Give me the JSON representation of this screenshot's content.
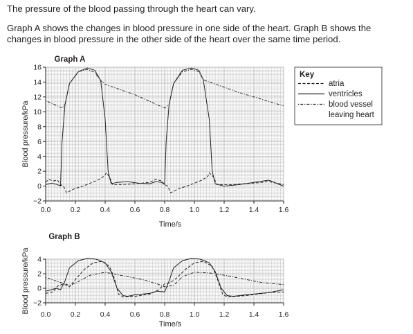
{
  "intro_text": "The pressure of the blood passing through the heart can vary.",
  "description_text": "Graph A shows the changes in blood pressure in one side of the heart. Graph B shows the changes in blood pressure in the other side of the heart over the same time period.",
  "key": {
    "title": "Key",
    "entries": [
      {
        "label": "atria",
        "style": "dashed"
      },
      {
        "label": "ventricles",
        "style": "solid"
      },
      {
        "label": "blood vessel",
        "style": "dash-dot",
        "label_line2": "leaving heart"
      }
    ]
  },
  "colors": {
    "line": "#231f20",
    "grid": "#b7b7b7",
    "text": "#231f20"
  },
  "chart_data": [
    {
      "type": "line",
      "title": "Graph A",
      "xlabel": "Time/s",
      "ylabel": "Blood pressure/kPa",
      "xlim": [
        0.0,
        1.6
      ],
      "ylim": [
        -2,
        16
      ],
      "x_ticks": [
        "0.0",
        "0.2",
        "0.4",
        "0.6",
        "0.8",
        "1.0",
        "1.2",
        "1.4",
        "1.6"
      ],
      "y_ticks": [
        "−2",
        "0",
        "2",
        "4",
        "6",
        "8",
        "10",
        "12",
        "14",
        "16"
      ],
      "grid": true,
      "legend": "Key, right of Graph A",
      "series": [
        {
          "name": "ventricles",
          "style": "solid",
          "points": [
            [
              0.0,
              0.2
            ],
            [
              0.04,
              0.4
            ],
            [
              0.08,
              0.2
            ],
            [
              0.1,
              0.0
            ],
            [
              0.11,
              6.0
            ],
            [
              0.13,
              11.0
            ],
            [
              0.16,
              13.8
            ],
            [
              0.22,
              15.4
            ],
            [
              0.28,
              15.9
            ],
            [
              0.33,
              15.6
            ],
            [
              0.37,
              14.2
            ],
            [
              0.4,
              9.0
            ],
            [
              0.42,
              2.0
            ],
            [
              0.44,
              0.3
            ],
            [
              0.48,
              0.5
            ],
            [
              0.55,
              0.6
            ],
            [
              0.62,
              0.4
            ],
            [
              0.7,
              0.3
            ],
            [
              0.74,
              0.6
            ],
            [
              0.78,
              0.5
            ],
            [
              0.8,
              0.2
            ],
            [
              0.81,
              6.0
            ],
            [
              0.83,
              11.0
            ],
            [
              0.86,
              13.8
            ],
            [
              0.92,
              15.6
            ],
            [
              0.98,
              15.9
            ],
            [
              1.03,
              15.6
            ],
            [
              1.06,
              14.3
            ],
            [
              1.1,
              9.0
            ],
            [
              1.12,
              2.0
            ],
            [
              1.14,
              0.3
            ],
            [
              1.2,
              0.0
            ],
            [
              1.3,
              0.2
            ],
            [
              1.4,
              0.5
            ],
            [
              1.5,
              0.8
            ],
            [
              1.6,
              0.0
            ]
          ]
        },
        {
          "name": "atria",
          "style": "dashed",
          "points": [
            [
              0.0,
              0.5
            ],
            [
              0.02,
              0.9
            ],
            [
              0.05,
              0.7
            ],
            [
              0.08,
              0.8
            ],
            [
              0.1,
              0.2
            ],
            [
              0.12,
              0.0
            ],
            [
              0.14,
              -0.9
            ],
            [
              0.16,
              -0.7
            ],
            [
              0.2,
              -0.3
            ],
            [
              0.25,
              0.0
            ],
            [
              0.3,
              0.4
            ],
            [
              0.35,
              0.8
            ],
            [
              0.39,
              1.3
            ],
            [
              0.41,
              1.8
            ],
            [
              0.43,
              1.2
            ],
            [
              0.45,
              0.2
            ],
            [
              0.5,
              0.2
            ],
            [
              0.6,
              0.3
            ],
            [
              0.7,
              0.5
            ],
            [
              0.74,
              0.9
            ],
            [
              0.78,
              0.7
            ],
            [
              0.8,
              0.2
            ],
            [
              0.82,
              0.0
            ],
            [
              0.84,
              -0.9
            ],
            [
              0.86,
              -0.7
            ],
            [
              0.9,
              -0.3
            ],
            [
              0.95,
              0.0
            ],
            [
              1.0,
              0.4
            ],
            [
              1.05,
              0.8
            ],
            [
              1.09,
              1.3
            ],
            [
              1.1,
              1.8
            ],
            [
              1.13,
              1.2
            ],
            [
              1.15,
              0.2
            ],
            [
              1.25,
              0.2
            ],
            [
              1.4,
              0.4
            ],
            [
              1.5,
              0.6
            ],
            [
              1.6,
              0.2
            ]
          ]
        },
        {
          "name": "blood vessel leaving heart",
          "style": "dash-dot",
          "points": [
            [
              0.0,
              11.5
            ],
            [
              0.08,
              10.8
            ],
            [
              0.11,
              10.5
            ],
            [
              0.13,
              11.0
            ],
            [
              0.16,
              13.8
            ],
            [
              0.22,
              15.4
            ],
            [
              0.28,
              15.7
            ],
            [
              0.33,
              15.3
            ],
            [
              0.37,
              14.2
            ],
            [
              0.4,
              13.7
            ],
            [
              0.5,
              13.0
            ],
            [
              0.6,
              12.3
            ],
            [
              0.7,
              11.4
            ],
            [
              0.8,
              10.5
            ],
            [
              0.83,
              11.0
            ],
            [
              0.86,
              13.8
            ],
            [
              0.92,
              15.4
            ],
            [
              0.98,
              15.7
            ],
            [
              1.03,
              15.4
            ],
            [
              1.06,
              14.3
            ],
            [
              1.1,
              14.0
            ],
            [
              1.2,
              13.3
            ],
            [
              1.3,
              12.6
            ],
            [
              1.4,
              12.0
            ],
            [
              1.5,
              11.4
            ],
            [
              1.6,
              10.8
            ]
          ]
        }
      ]
    },
    {
      "type": "line",
      "title": "Graph B",
      "xlabel": "Time/s",
      "ylabel": "Blood pressure/kPa",
      "xlim": [
        0.0,
        1.6
      ],
      "ylim": [
        -2,
        4
      ],
      "x_ticks": [
        "0.0",
        "0.2",
        "0.4",
        "0.6",
        "0.8",
        "1.0",
        "1.2",
        "1.4",
        "1.6"
      ],
      "y_ticks": [
        "−2",
        "0",
        "2",
        "4"
      ],
      "grid": true,
      "series": [
        {
          "name": "ventricles",
          "style": "solid",
          "points": [
            [
              0.0,
              -0.4
            ],
            [
              0.04,
              -0.2
            ],
            [
              0.07,
              0.0
            ],
            [
              0.1,
              -0.2
            ],
            [
              0.13,
              1.0
            ],
            [
              0.16,
              2.8
            ],
            [
              0.22,
              3.8
            ],
            [
              0.28,
              4.1
            ],
            [
              0.34,
              4.0
            ],
            [
              0.4,
              3.5
            ],
            [
              0.44,
              2.3
            ],
            [
              0.48,
              0.0
            ],
            [
              0.52,
              -1.0
            ],
            [
              0.55,
              -1.1
            ],
            [
              0.6,
              -0.9
            ],
            [
              0.7,
              -0.7
            ],
            [
              0.75,
              -0.4
            ],
            [
              0.8,
              -0.5
            ],
            [
              0.83,
              1.0
            ],
            [
              0.86,
              2.8
            ],
            [
              0.92,
              3.8
            ],
            [
              0.98,
              4.1
            ],
            [
              1.04,
              4.0
            ],
            [
              1.1,
              3.5
            ],
            [
              1.14,
              2.3
            ],
            [
              1.18,
              0.0
            ],
            [
              1.22,
              -1.0
            ],
            [
              1.26,
              -1.1
            ],
            [
              1.35,
              -0.9
            ],
            [
              1.5,
              -0.6
            ],
            [
              1.6,
              -0.2
            ]
          ]
        },
        {
          "name": "atria",
          "style": "dashed",
          "points": [
            [
              0.0,
              -0.7
            ],
            [
              0.05,
              -0.5
            ],
            [
              0.08,
              0.3
            ],
            [
              0.12,
              0.6
            ],
            [
              0.16,
              0.2
            ],
            [
              0.2,
              1.2
            ],
            [
              0.26,
              2.6
            ],
            [
              0.32,
              3.5
            ],
            [
              0.38,
              3.7
            ],
            [
              0.43,
              3.0
            ],
            [
              0.46,
              1.5
            ],
            [
              0.49,
              -0.8
            ],
            [
              0.52,
              -1.2
            ],
            [
              0.6,
              -1.1
            ],
            [
              0.7,
              -0.8
            ],
            [
              0.76,
              -0.2
            ],
            [
              0.8,
              0.6
            ],
            [
              0.84,
              0.8
            ],
            [
              0.88,
              1.4
            ],
            [
              0.94,
              2.6
            ],
            [
              1.0,
              3.5
            ],
            [
              1.06,
              3.7
            ],
            [
              1.12,
              3.0
            ],
            [
              1.15,
              1.5
            ],
            [
              1.19,
              -0.8
            ],
            [
              1.22,
              -1.2
            ],
            [
              1.35,
              -1.0
            ],
            [
              1.5,
              -0.6
            ],
            [
              1.6,
              -0.5
            ]
          ]
        },
        {
          "name": "blood vessel leaving heart",
          "style": "dash-dot",
          "points": [
            [
              0.0,
              1.5
            ],
            [
              0.1,
              0.8
            ],
            [
              0.16,
              0.4
            ],
            [
              0.2,
              0.7
            ],
            [
              0.3,
              1.8
            ],
            [
              0.4,
              2.2
            ],
            [
              0.45,
              2.0
            ],
            [
              0.55,
              1.6
            ],
            [
              0.65,
              1.2
            ],
            [
              0.75,
              0.6
            ],
            [
              0.8,
              0.2
            ],
            [
              0.86,
              0.4
            ],
            [
              0.92,
              1.6
            ],
            [
              1.0,
              2.2
            ],
            [
              1.1,
              2.1
            ],
            [
              1.2,
              1.8
            ],
            [
              1.3,
              1.4
            ],
            [
              1.45,
              0.8
            ],
            [
              1.6,
              0.5
            ]
          ]
        }
      ]
    }
  ]
}
